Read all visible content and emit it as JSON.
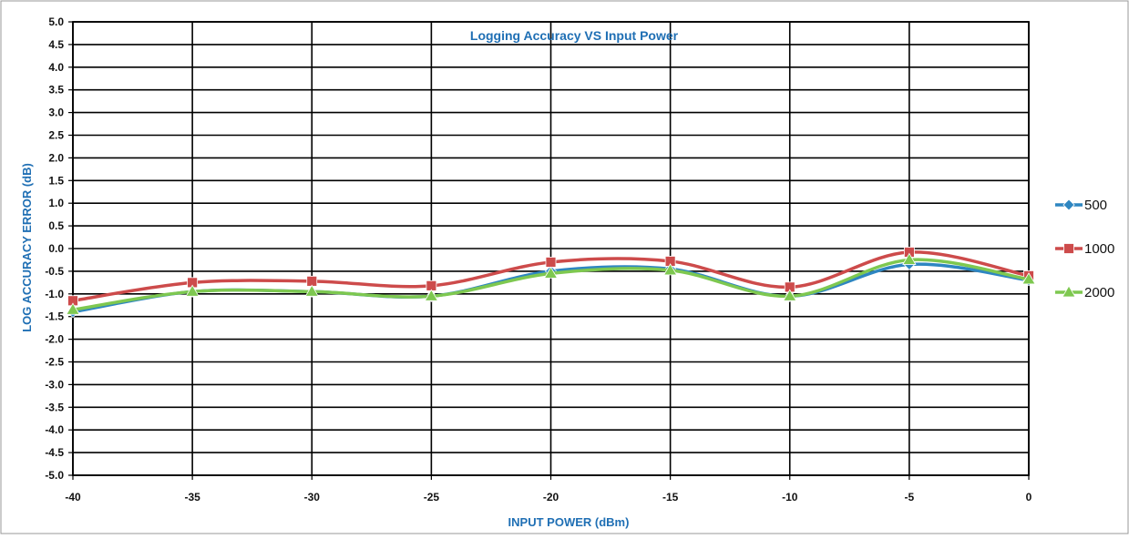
{
  "chart_data": {
    "type": "line",
    "title": "Logging Accuracy VS Input Power",
    "xlabel": "INPUT POWER (dBm)",
    "ylabel": "LOG ACCURACY ERROR (dB)",
    "xlim": [
      -40,
      0
    ],
    "ylim": [
      -5.0,
      5.0
    ],
    "x_ticks": [
      "-40",
      "-35",
      "-30",
      "-25",
      "-20",
      "-15",
      "-10",
      "-5",
      "0"
    ],
    "y_ticks": [
      "5.0",
      "4.5",
      "4.0",
      "3.5",
      "3.0",
      "2.5",
      "2.0",
      "1.5",
      "1.0",
      "0.5",
      "0.0",
      "-0.5",
      "-1.0",
      "-1.5",
      "-2.0",
      "-2.5",
      "-3.0",
      "-3.5",
      "-4.0",
      "-4.5",
      "-5.0"
    ],
    "grid": true,
    "smooth": true,
    "legend_position": "right",
    "x": [
      -40,
      -35,
      -30,
      -25,
      -20,
      -15,
      -10,
      -5,
      0
    ],
    "series": [
      {
        "name": "500",
        "color": "#2e86c1",
        "marker": "diamond",
        "values": [
          -1.4,
          -0.95,
          -0.95,
          -1.05,
          -0.5,
          -0.45,
          -1.05,
          -0.35,
          -0.7
        ]
      },
      {
        "name": "1000",
        "color": "#cd4b4b",
        "marker": "square",
        "values": [
          -1.15,
          -0.75,
          -0.72,
          -0.82,
          -0.3,
          -0.28,
          -0.85,
          -0.08,
          -0.6
        ]
      },
      {
        "name": "2000",
        "color": "#7ec850",
        "marker": "triangle",
        "values": [
          -1.35,
          -0.95,
          -0.95,
          -1.05,
          -0.55,
          -0.48,
          -1.05,
          -0.25,
          -0.68
        ]
      }
    ]
  }
}
